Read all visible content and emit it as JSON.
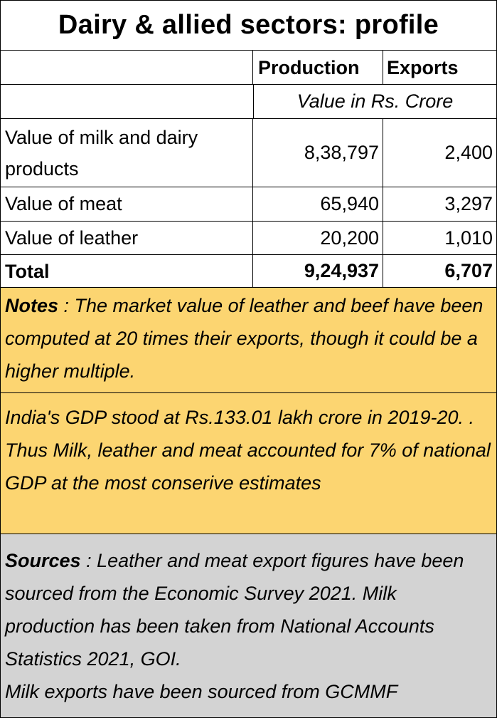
{
  "title": "Dairy & allied sectors: profile",
  "header": {
    "production": "Production",
    "exports": "Exports"
  },
  "unit_note": "Value in Rs. Crore",
  "rows": [
    {
      "label": "Value of milk and  dairy products",
      "production": "8,38,797",
      "exports": "2,400"
    },
    {
      "label": "Value of meat",
      "production": "65,940",
      "exports": "3,297"
    },
    {
      "label": "Value of leather",
      "production": "20,200",
      "exports": "1,010"
    }
  ],
  "total": {
    "label": "Total",
    "production": "9,24,937",
    "exports": "6,707"
  },
  "notes": {
    "lead": "Notes",
    "text": " : The market value of leather and beef have been computed at 20 times their exports, though it could be a higher multiple."
  },
  "gdp_note": "India's GDP stood at Rs.133.01 lakh crore in 2019-20. . Thus Milk, leather and meat accounted for 7% of national GDP at the most conserive estimates",
  "sources": {
    "lead": "Sources",
    "text": " : Leather and meat export figures have been sourced from the Economic Survey 2021. Milk production has been taken from National Accounts Statistics 2021, GOI.",
    "text2": "Milk exports have been sourced from GCMMF"
  },
  "colors": {
    "notes_bg": "#fcd571",
    "sources_bg": "#d3d3d3"
  }
}
